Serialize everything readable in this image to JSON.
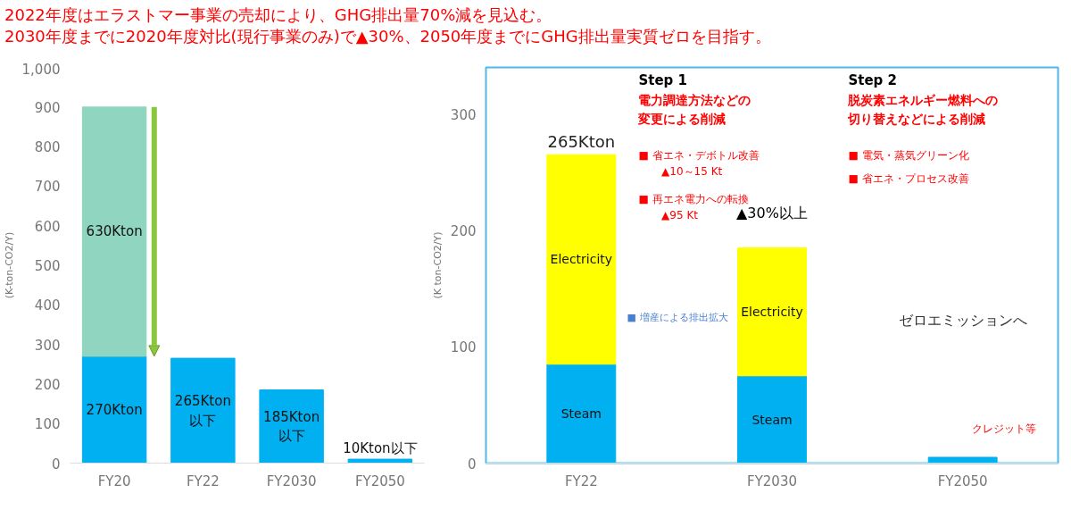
{
  "chart_data": [
    {
      "type": "bar",
      "title": "2022年度はエラストマー事業の売却により、GHG排出量70%減を見込む。",
      "subtitle": "2030年度までに2020年度対比(現行事業のみ)で▲30%、2050年度までにGHG排出量実質ゼロを目指す。",
      "ylabel": "(K-ton-CO2/Y)",
      "categories": [
        "FY20",
        "FY22",
        "FY2030",
        "FY2050"
      ],
      "stacked": true,
      "series": [
        {
          "color": "#00b0f0",
          "values": [
            270,
            265,
            185,
            10
          ],
          "value_labels": [
            "270Kton",
            "265Kton\n以下",
            "185Kton\n以下",
            "10Kton以下"
          ]
        },
        {
          "color": "#8fd5bf",
          "values": [
            630,
            null,
            null,
            null
          ],
          "value_labels": [
            "630Kton",
            null,
            null,
            null
          ]
        }
      ],
      "ylim": [
        0,
        1000
      ],
      "yticks": [
        0,
        100,
        200,
        300,
        400,
        500,
        600,
        700,
        800,
        900,
        {
          "value": 1000,
          "label": "1,000"
        }
      ]
    },
    {
      "type": "bar",
      "ylabel": "(K ton-CO2/Y)",
      "categories": [
        "FY22",
        "FY2030",
        "FY2050"
      ],
      "stacked": true,
      "series": [
        {
          "color": "#00b0f0",
          "values": [
            85,
            75,
            5
          ],
          "value_labels": [
            "Steam",
            "Steam",
            null
          ]
        },
        {
          "color": "#ffff00",
          "values": [
            180,
            110,
            null
          ],
          "value_labels": [
            "Electricity",
            "Electricity",
            null
          ]
        }
      ],
      "totals": [
        "265Kton",
        null,
        null
      ],
      "ylim": [
        0,
        340
      ],
      "yticks": [
        0,
        100,
        200,
        300
      ],
      "annotations": [
        "Step 1",
        "電力調達方法などの",
        "変更による削減",
        "■ 省エネ・デボトル改善",
        "▲10～15 Kt",
        "■ 再エネ電力への転換",
        "▲95 Kt",
        "■ 増産による排出拡大",
        "▲30%以上",
        "Step 2",
        "脱炭素エネルギー燃料への",
        "切り替えなどによる削減",
        "■ 電気・蒸気グリーン化",
        "■ 省エネ・プロセス改善",
        "ゼロエミッションへ",
        "クレジット等"
      ]
    }
  ]
}
